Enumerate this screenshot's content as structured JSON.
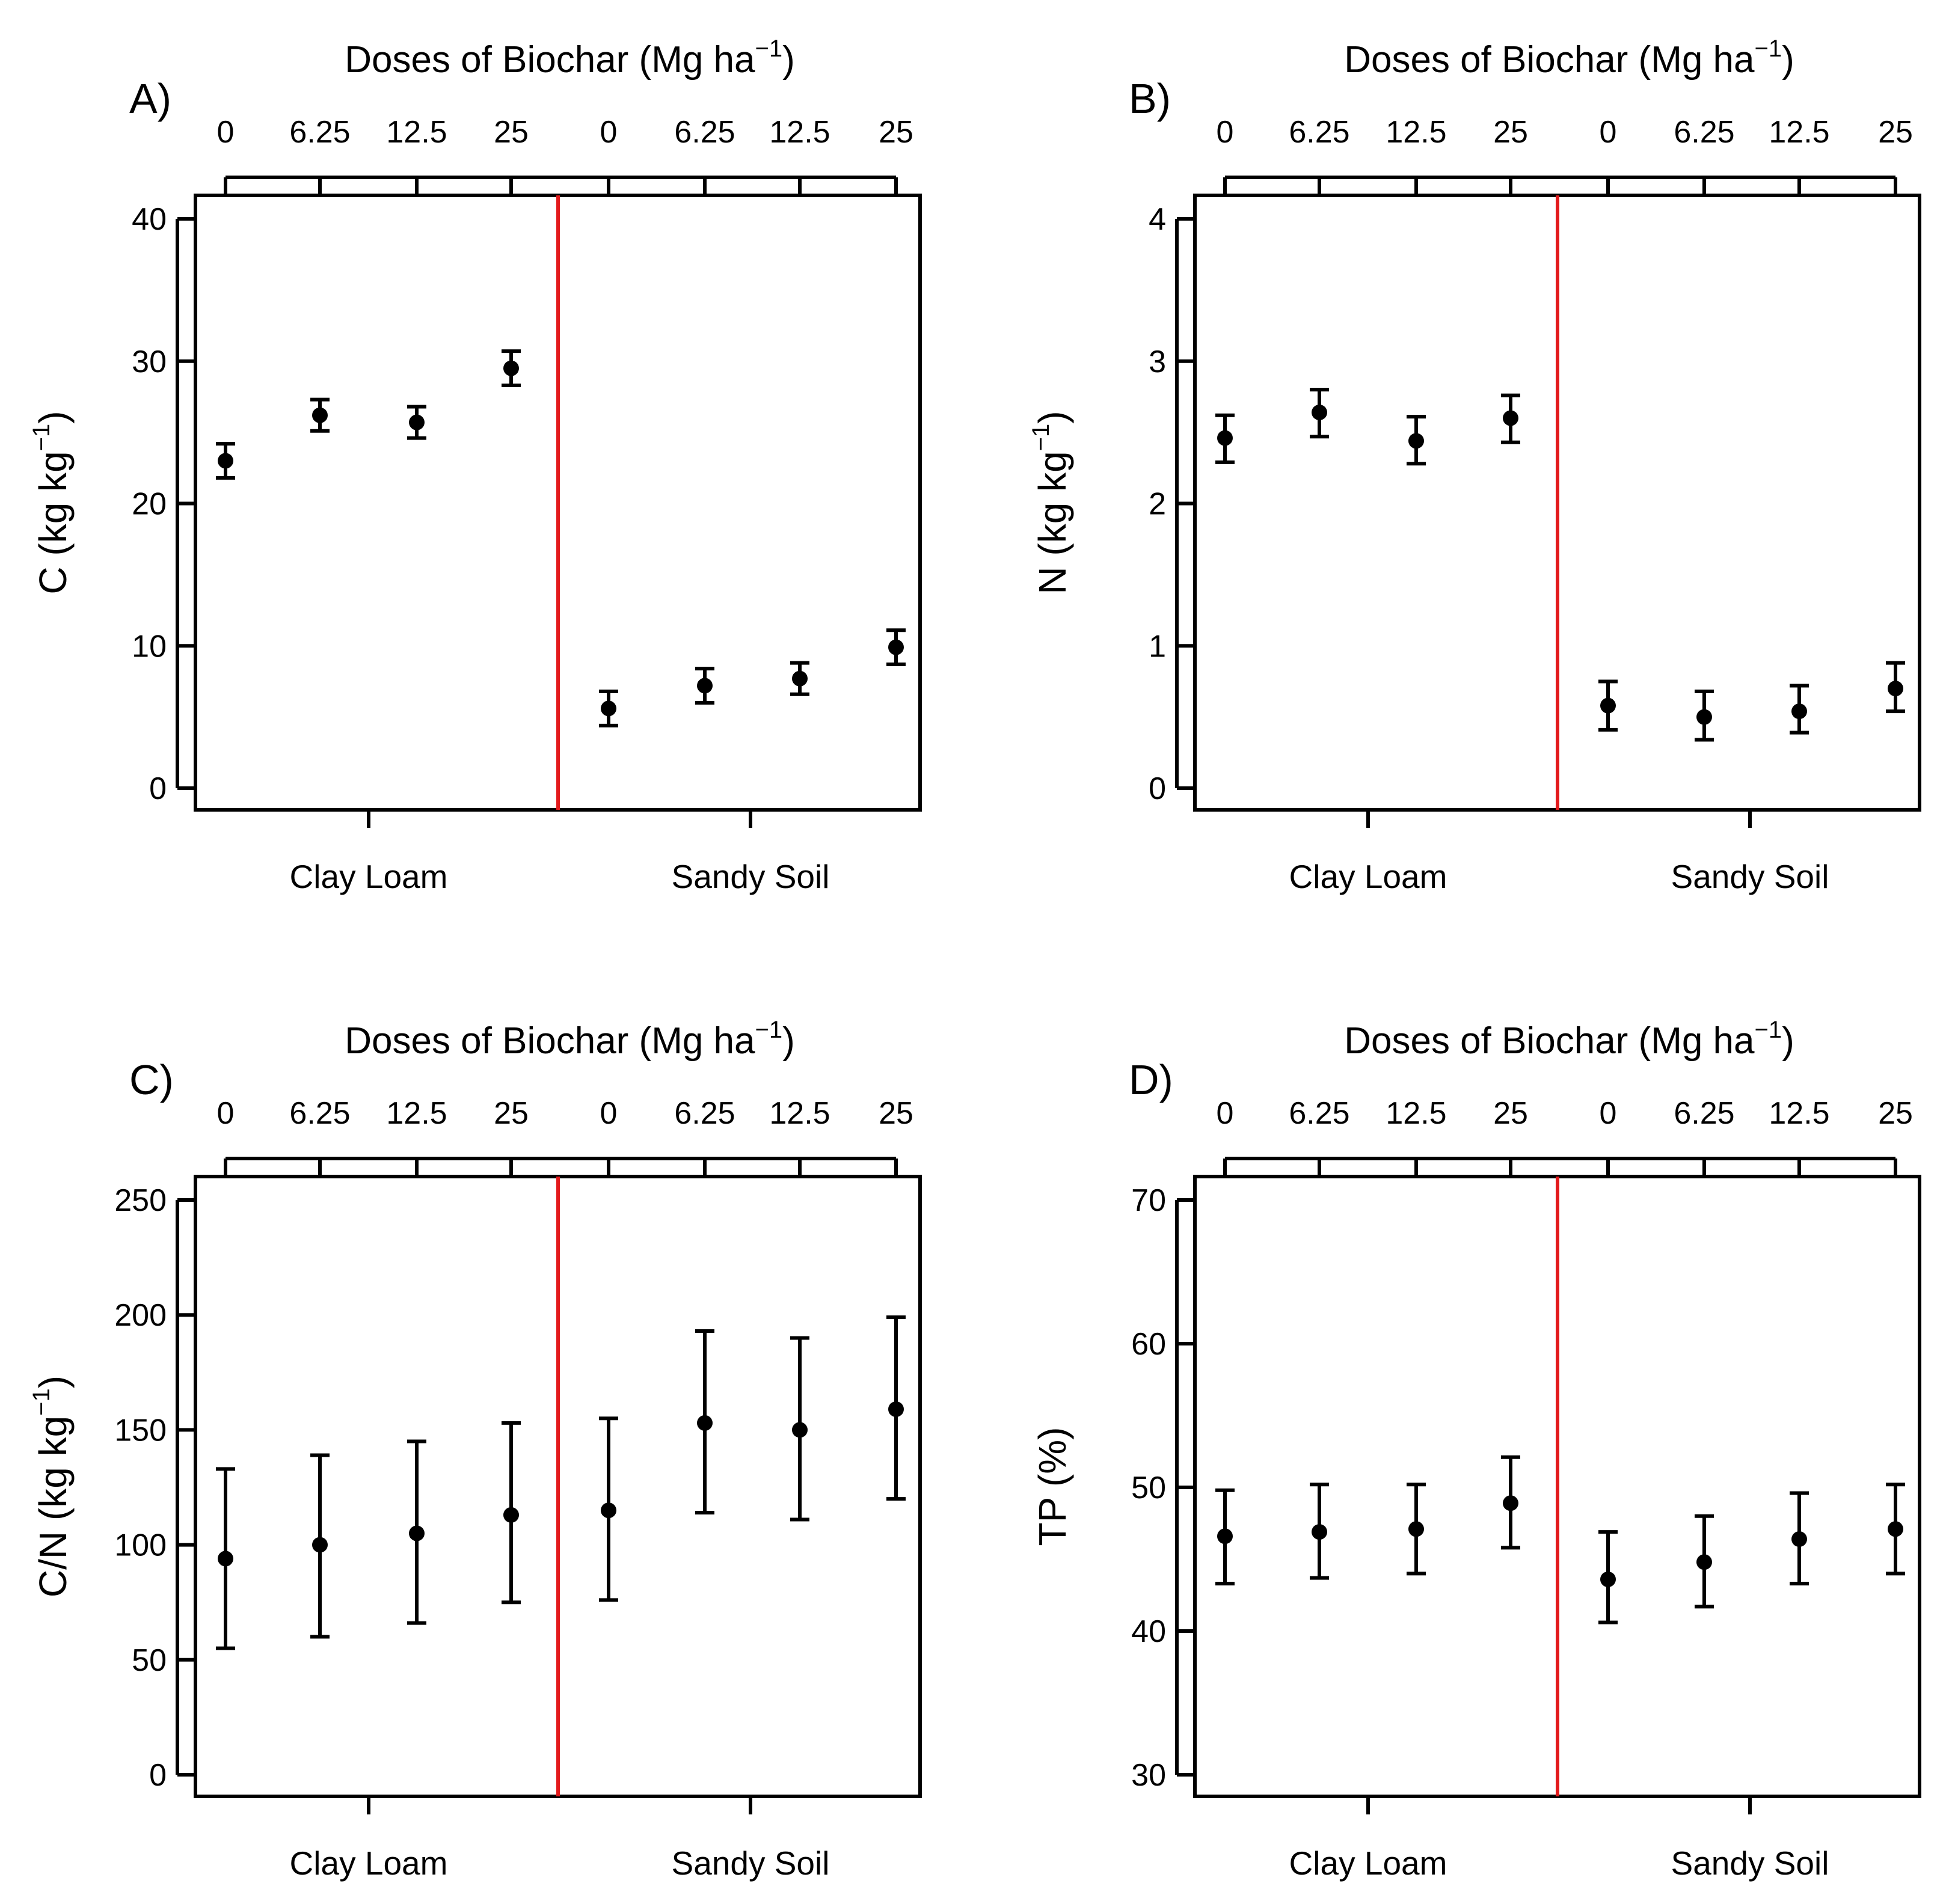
{
  "figure": {
    "top_axis_title": "Doses of Biochar (Mg ha",
    "top_axis_sup": "−1",
    "top_axis_close": ")",
    "colors": {
      "divider": "#e31a1c",
      "ink": "#000000",
      "background": "#ffffff"
    }
  },
  "chart_data": [
    {
      "type": "scatter",
      "panel_label": "A)",
      "ylabel_main": "C (kg kg",
      "ylabel_sup": "−1",
      "ylabel_close": ")",
      "ylim": [
        0,
        40
      ],
      "yticks": [
        0,
        10,
        20,
        30,
        40
      ],
      "top_ticks": [
        "0",
        "6.25",
        "12.5",
        "25",
        "0",
        "6.25",
        "12.5",
        "25"
      ],
      "groups": [
        "Clay Loam",
        "Sandy Soil"
      ],
      "points": [
        {
          "group": "Clay Loam",
          "dose": "0",
          "value": 23.0,
          "low": 21.8,
          "high": 24.2
        },
        {
          "group": "Clay Loam",
          "dose": "6.25",
          "value": 26.2,
          "low": 25.1,
          "high": 27.3
        },
        {
          "group": "Clay Loam",
          "dose": "12.5",
          "value": 25.7,
          "low": 24.6,
          "high": 26.8
        },
        {
          "group": "Clay Loam",
          "dose": "25",
          "value": 29.5,
          "low": 28.3,
          "high": 30.7
        },
        {
          "group": "Sandy Soil",
          "dose": "0",
          "value": 5.6,
          "low": 4.4,
          "high": 6.8
        },
        {
          "group": "Sandy Soil",
          "dose": "6.25",
          "value": 7.2,
          "low": 6.0,
          "high": 8.4
        },
        {
          "group": "Sandy Soil",
          "dose": "12.5",
          "value": 7.7,
          "low": 6.6,
          "high": 8.8
        },
        {
          "group": "Sandy Soil",
          "dose": "25",
          "value": 9.9,
          "low": 8.7,
          "high": 11.1
        }
      ]
    },
    {
      "type": "scatter",
      "panel_label": "B)",
      "ylabel_main": "N (kg kg",
      "ylabel_sup": "−1",
      "ylabel_close": ")",
      "ylim": [
        0,
        4
      ],
      "yticks": [
        0,
        1,
        2,
        3,
        4
      ],
      "top_ticks": [
        "0",
        "6.25",
        "12.5",
        "25",
        "0",
        "6.25",
        "12.5",
        "25"
      ],
      "groups": [
        "Clay Loam",
        "Sandy Soil"
      ],
      "points": [
        {
          "group": "Clay Loam",
          "dose": "0",
          "value": 2.46,
          "low": 2.29,
          "high": 2.62
        },
        {
          "group": "Clay Loam",
          "dose": "6.25",
          "value": 2.64,
          "low": 2.47,
          "high": 2.8
        },
        {
          "group": "Clay Loam",
          "dose": "12.5",
          "value": 2.44,
          "low": 2.28,
          "high": 2.61
        },
        {
          "group": "Clay Loam",
          "dose": "25",
          "value": 2.6,
          "low": 2.43,
          "high": 2.76
        },
        {
          "group": "Sandy Soil",
          "dose": "0",
          "value": 0.58,
          "low": 0.41,
          "high": 0.75
        },
        {
          "group": "Sandy Soil",
          "dose": "6.25",
          "value": 0.5,
          "low": 0.34,
          "high": 0.68
        },
        {
          "group": "Sandy Soil",
          "dose": "12.5",
          "value": 0.54,
          "low": 0.39,
          "high": 0.72
        },
        {
          "group": "Sandy Soil",
          "dose": "25",
          "value": 0.7,
          "low": 0.54,
          "high": 0.88
        }
      ]
    },
    {
      "type": "scatter",
      "panel_label": "C)",
      "ylabel_main": "C/N (kg kg",
      "ylabel_sup": "−1",
      "ylabel_close": ")",
      "ylim": [
        0,
        250
      ],
      "yticks": [
        0,
        50,
        100,
        150,
        200,
        250
      ],
      "top_ticks": [
        "0",
        "6.25",
        "12.5",
        "25",
        "0",
        "6.25",
        "12.5",
        "25"
      ],
      "groups": [
        "Clay Loam",
        "Sandy Soil"
      ],
      "points": [
        {
          "group": "Clay Loam",
          "dose": "0",
          "value": 94,
          "low": 55,
          "high": 133
        },
        {
          "group": "Clay Loam",
          "dose": "6.25",
          "value": 100,
          "low": 60,
          "high": 139
        },
        {
          "group": "Clay Loam",
          "dose": "12.5",
          "value": 105,
          "low": 66,
          "high": 145
        },
        {
          "group": "Clay Loam",
          "dose": "25",
          "value": 113,
          "low": 75,
          "high": 153
        },
        {
          "group": "Sandy Soil",
          "dose": "0",
          "value": 115,
          "low": 76,
          "high": 155
        },
        {
          "group": "Sandy Soil",
          "dose": "6.25",
          "value": 153,
          "low": 114,
          "high": 193
        },
        {
          "group": "Sandy Soil",
          "dose": "12.5",
          "value": 150,
          "low": 111,
          "high": 190
        },
        {
          "group": "Sandy Soil",
          "dose": "25",
          "value": 159,
          "low": 120,
          "high": 199
        }
      ]
    },
    {
      "type": "scatter",
      "panel_label": "D)",
      "ylabel_main": "TP (%)",
      "ylabel_sup": "",
      "ylabel_close": "",
      "ylim": [
        30,
        70
      ],
      "yticks": [
        30,
        40,
        50,
        60,
        70
      ],
      "top_ticks": [
        "0",
        "6.25",
        "12.5",
        "25",
        "0",
        "6.25",
        "12.5",
        "25"
      ],
      "groups": [
        "Clay Loam",
        "Sandy Soil"
      ],
      "points": [
        {
          "group": "Clay Loam",
          "dose": "0",
          "value": 46.6,
          "low": 43.3,
          "high": 49.8
        },
        {
          "group": "Clay Loam",
          "dose": "6.25",
          "value": 46.9,
          "low": 43.7,
          "high": 50.2
        },
        {
          "group": "Clay Loam",
          "dose": "12.5",
          "value": 47.1,
          "low": 44.0,
          "high": 50.2
        },
        {
          "group": "Clay Loam",
          "dose": "25",
          "value": 48.9,
          "low": 45.8,
          "high": 52.1
        },
        {
          "group": "Sandy Soil",
          "dose": "0",
          "value": 43.6,
          "low": 40.6,
          "high": 46.9
        },
        {
          "group": "Sandy Soil",
          "dose": "6.25",
          "value": 44.8,
          "low": 41.7,
          "high": 48.0
        },
        {
          "group": "Sandy Soil",
          "dose": "12.5",
          "value": 46.4,
          "low": 43.3,
          "high": 49.6
        },
        {
          "group": "Sandy Soil",
          "dose": "25",
          "value": 47.1,
          "low": 44.0,
          "high": 50.2
        }
      ]
    }
  ]
}
